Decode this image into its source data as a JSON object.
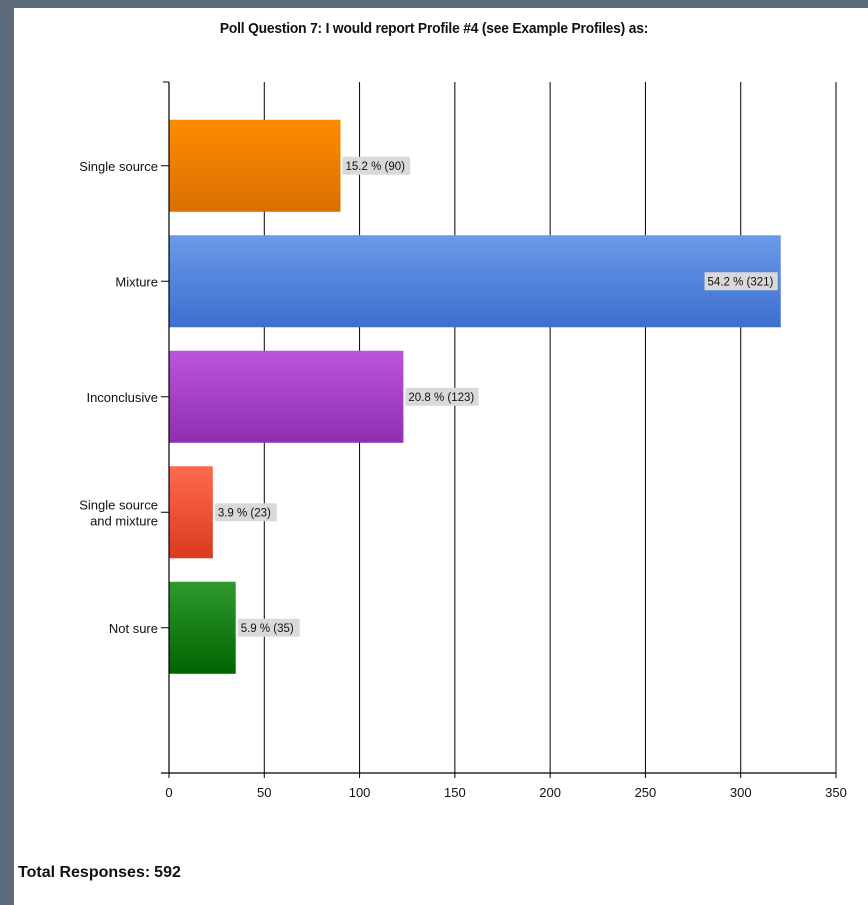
{
  "chart_data": {
    "type": "bar",
    "orientation": "horizontal",
    "title": "Poll Question 7: I would report Profile #4 (see Example Profiles) as:",
    "categories": [
      "Single source",
      "Mixture",
      "Inconclusive",
      "Single source and mixture",
      "Not sure"
    ],
    "category_lines": [
      [
        "Single source"
      ],
      [
        "Mixture"
      ],
      [
        "Inconclusive"
      ],
      [
        "Single source",
        "and mixture"
      ],
      [
        "Not sure"
      ]
    ],
    "values": [
      90,
      321,
      123,
      23,
      35
    ],
    "data_labels": [
      "15.2 % (90)",
      "54.2 % (321)",
      "20.8 % (123)",
      "3.9 % (23)",
      "5.9 % (35)"
    ],
    "colors": [
      [
        "#ff8c00",
        "#d96f00"
      ],
      [
        "#6a9ae8",
        "#3e6fd0"
      ],
      [
        "#bb55dd",
        "#8e2fb0"
      ],
      [
        "#ff6a4d",
        "#d93a20"
      ],
      [
        "#2e9a2e",
        "#006400"
      ]
    ],
    "xlim": [
      0,
      350
    ],
    "xticks": [
      0,
      50,
      100,
      150,
      200,
      250,
      300,
      350
    ],
    "grid": true,
    "xlabel": "",
    "ylabel": ""
  },
  "footer": {
    "total_label": "Total Responses:",
    "total_value": "592"
  }
}
